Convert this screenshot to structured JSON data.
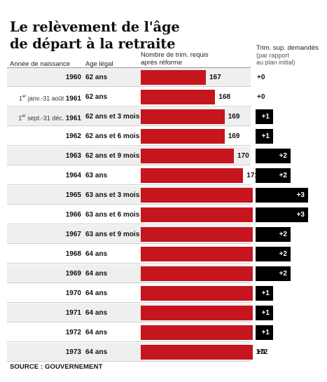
{
  "title_line1": "Le relèvement de l'âge",
  "title_line2": "de départ à la retraite",
  "headers": {
    "year": "Année de naissance",
    "age": "Age légal",
    "trim1": "Nombre de trim. requis",
    "trim2": "après réforme",
    "sup1": "Trim. sup. demandés",
    "sup2": "(par rapport",
    "sup3": "au plan initial)"
  },
  "source": "SOURCE : GOUVERNEMENT",
  "colors": {
    "trim_bar": "#c5161d",
    "sup_box": "#000000",
    "row_shade": "#efefef"
  },
  "chart_data": {
    "type": "bar",
    "title": "Le relèvement de l'âge de départ à la retraite",
    "categories": [
      "1960",
      "1er janv.-31 août 1961",
      "1er sept.-31 déc. 1961",
      "1962",
      "1963",
      "1964",
      "1965",
      "1966",
      "1967",
      "1968",
      "1969",
      "1970",
      "1971",
      "1972",
      "1973"
    ],
    "rows": [
      {
        "pre": "",
        "sup": "",
        "post": "",
        "year": "1960",
        "age": "62 ans",
        "trim": 167,
        "sup_value": 0,
        "sup_label": "+0"
      },
      {
        "pre": "1",
        "sup": "er",
        "post": " janv.-31 août ",
        "year": "1961",
        "age": "62 ans",
        "trim": 168,
        "sup_value": 0,
        "sup_label": "+0"
      },
      {
        "pre": "1",
        "sup": "er",
        "post": " sept.-31 déc. ",
        "year": "1961",
        "age": "62 ans et 3 mois",
        "trim": 169,
        "sup_value": 1,
        "sup_label": "+1"
      },
      {
        "pre": "",
        "sup": "",
        "post": "",
        "year": "1962",
        "age": "62 ans et 6 mois",
        "trim": 169,
        "sup_value": 1,
        "sup_label": "+1"
      },
      {
        "pre": "",
        "sup": "",
        "post": "",
        "year": "1963",
        "age": "62 ans et 9 mois",
        "trim": 170,
        "sup_value": 2,
        "sup_label": "+2"
      },
      {
        "pre": "",
        "sup": "",
        "post": "",
        "year": "1964",
        "age": "63 ans",
        "trim": 171,
        "sup_value": 2,
        "sup_label": "+2"
      },
      {
        "pre": "",
        "sup": "",
        "post": "",
        "year": "1965",
        "age": "63 ans et 3 mois",
        "trim": 172,
        "sup_value": 3,
        "sup_label": "+3"
      },
      {
        "pre": "",
        "sup": "",
        "post": "",
        "year": "1966",
        "age": "63 ans et 6 mois",
        "trim": 172,
        "sup_value": 3,
        "sup_label": "+3"
      },
      {
        "pre": "",
        "sup": "",
        "post": "",
        "year": "1967",
        "age": "63 ans et 9 mois",
        "trim": 172,
        "sup_value": 2,
        "sup_label": "+2"
      },
      {
        "pre": "",
        "sup": "",
        "post": "",
        "year": "1968",
        "age": "64 ans",
        "trim": 172,
        "sup_value": 2,
        "sup_label": "+2"
      },
      {
        "pre": "",
        "sup": "",
        "post": "",
        "year": "1969",
        "age": "64 ans",
        "trim": 172,
        "sup_value": 2,
        "sup_label": "+2"
      },
      {
        "pre": "",
        "sup": "",
        "post": "",
        "year": "1970",
        "age": "64 ans",
        "trim": 172,
        "sup_value": 1,
        "sup_label": "+1"
      },
      {
        "pre": "",
        "sup": "",
        "post": "",
        "year": "1971",
        "age": "64 ans",
        "trim": 172,
        "sup_value": 1,
        "sup_label": "+1"
      },
      {
        "pre": "",
        "sup": "",
        "post": "",
        "year": "1972",
        "age": "64 ans",
        "trim": 172,
        "sup_value": 1,
        "sup_label": "+1"
      },
      {
        "pre": "",
        "sup": "",
        "post": "",
        "year": "1973",
        "age": "64 ans",
        "trim": 172,
        "sup_value": 0,
        "sup_label": "+0"
      }
    ]
  }
}
